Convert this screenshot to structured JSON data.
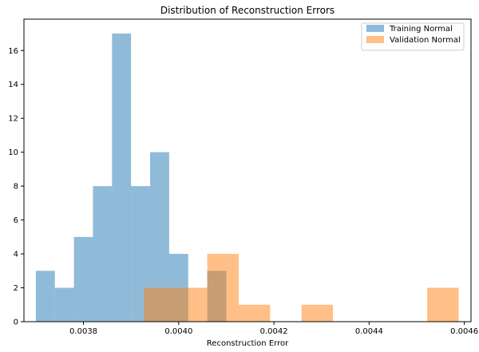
{
  "chart_data": {
    "type": "bar",
    "title": "Distribution of Reconstruction Errors",
    "xlabel": "Reconstruction Error",
    "ylabel": "",
    "xlim": [
      0.003675,
      0.004614
    ],
    "ylim": [
      0,
      17.85
    ],
    "x_ticks": [
      0.0038,
      0.004,
      0.0042,
      0.0044,
      0.0046
    ],
    "x_tick_labels": [
      "0.0038",
      "0.0040",
      "0.0042",
      "0.0044",
      "0.0046"
    ],
    "y_ticks": [
      0,
      2,
      4,
      6,
      8,
      10,
      12,
      14,
      16
    ],
    "y_tick_labels": [
      "0",
      "2",
      "4",
      "6",
      "8",
      "10",
      "12",
      "14",
      "16"
    ],
    "grid": false,
    "legend_position": "top-right",
    "series": [
      {
        "name": "Training Normal",
        "color": "#1f77b4",
        "alpha": 0.5,
        "bins": [
          {
            "x0": 0.0037,
            "x1": 0.00374,
            "count": 3
          },
          {
            "x0": 0.00374,
            "x1": 0.00378,
            "count": 2
          },
          {
            "x0": 0.00378,
            "x1": 0.00382,
            "count": 5
          },
          {
            "x0": 0.00382,
            "x1": 0.00386,
            "count": 8
          },
          {
            "x0": 0.00386,
            "x1": 0.0039,
            "count": 17
          },
          {
            "x0": 0.0039,
            "x1": 0.00394,
            "count": 8
          },
          {
            "x0": 0.00394,
            "x1": 0.00398,
            "count": 10
          },
          {
            "x0": 0.00398,
            "x1": 0.00402,
            "count": 4
          },
          {
            "x0": 0.00402,
            "x1": 0.00406,
            "count": 0
          },
          {
            "x0": 0.00406,
            "x1": 0.0041,
            "count": 3
          }
        ]
      },
      {
        "name": "Validation Normal",
        "color": "#ff7f0e",
        "alpha": 0.5,
        "bins": [
          {
            "x0": 0.003927,
            "x1": 0.003993,
            "count": 2
          },
          {
            "x0": 0.003993,
            "x1": 0.00406,
            "count": 2
          },
          {
            "x0": 0.00406,
            "x1": 0.004126,
            "count": 4
          },
          {
            "x0": 0.004126,
            "x1": 0.004192,
            "count": 1
          },
          {
            "x0": 0.004192,
            "x1": 0.004258,
            "count": 0
          },
          {
            "x0": 0.004258,
            "x1": 0.004324,
            "count": 1
          },
          {
            "x0": 0.004324,
            "x1": 0.00439,
            "count": 0
          },
          {
            "x0": 0.00439,
            "x1": 0.004456,
            "count": 0
          },
          {
            "x0": 0.004456,
            "x1": 0.004522,
            "count": 0
          },
          {
            "x0": 0.004522,
            "x1": 0.004588,
            "count": 2
          }
        ]
      }
    ]
  }
}
